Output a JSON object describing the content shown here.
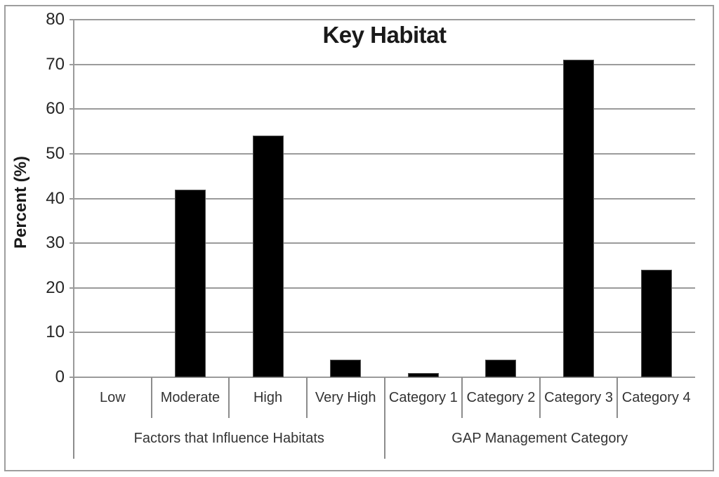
{
  "chart_data": {
    "type": "bar",
    "title": "Key Habitat",
    "xlabel": "",
    "ylabel": "Percent (%)",
    "ylim": [
      0,
      80
    ],
    "yticks": [
      0,
      10,
      20,
      30,
      40,
      50,
      60,
      70,
      80
    ],
    "grid": true,
    "legend": false,
    "bar_color": "#000000",
    "categories": [
      "Low",
      "Moderate",
      "High",
      "Very High",
      "Category 1",
      "Category 2",
      "Category 3",
      "Category 4"
    ],
    "values": [
      0,
      42,
      54,
      4,
      1,
      4,
      71,
      24
    ],
    "category_groups": [
      {
        "label": "Factors that Influence Habitats",
        "span": 4
      },
      {
        "label": "GAP Management Category",
        "span": 4
      }
    ]
  },
  "colors": {
    "background": "#ffffff",
    "bar": "#000000",
    "bar_border": "#555555",
    "gridline": "#9b9b9b",
    "separator": "#8c8c8c",
    "frame_border": "#9e9e9e",
    "title_text": "#1a1a1a",
    "axis_text": "#262626",
    "category_text": "#333333"
  }
}
